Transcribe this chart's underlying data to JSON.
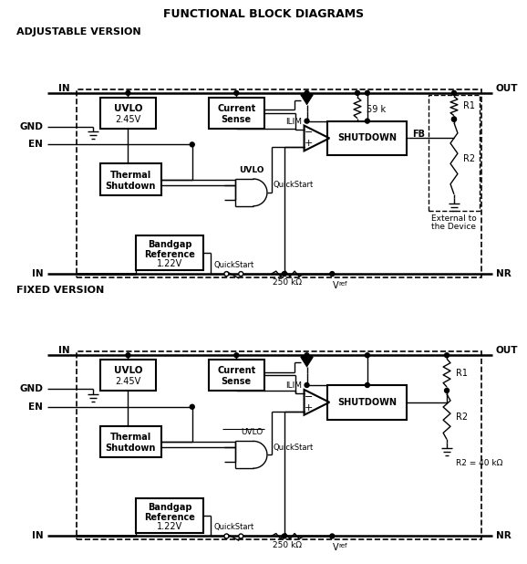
{
  "title": "FUNCTIONAL BLOCK DIAGRAMS",
  "adj_label": "ADJUSTABLE VERSION",
  "fix_label": "FIXED VERSION",
  "bg_color": "#ffffff",
  "lc": "#000000",
  "lw": 1.0,
  "lw_thick": 1.5,
  "lw_heavy": 1.8
}
